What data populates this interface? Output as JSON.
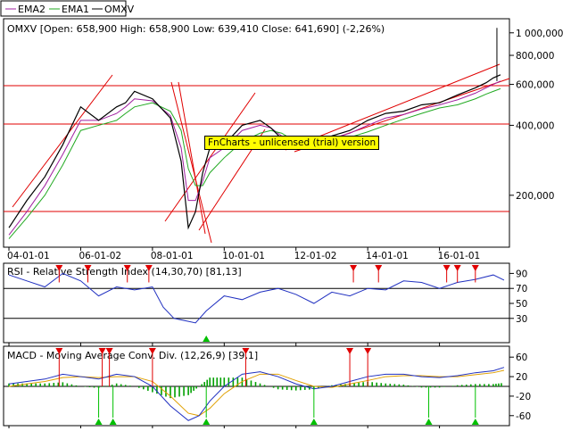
{
  "legend": [
    {
      "name": "EMA2",
      "color": "#a020a0"
    },
    {
      "name": "EMA1",
      "color": "#22aa22"
    },
    {
      "name": "OMXV",
      "color": "#000000"
    }
  ],
  "price_title": "OMXV [Open: 658,900  High: 658,900  Low: 639,410  Close: 641,690] (-2,26%)",
  "rsi_title": "RSI - Relative Strength Index (14,30,70) [81,13]",
  "macd_title": "MACD - Moving Average Conv. Div. (12,26,9) [39,1]",
  "watermark": "FnCharts - unlicensed (trial) version",
  "x_ticks": [
    "04-01-01",
    "06-01-02",
    "08-01-01",
    "10-01-01",
    "12-01-02",
    "14-01-01",
    "16-01-01"
  ],
  "price_ticks": [
    "1 000,000",
    "800,000",
    "600,000",
    "400,000",
    "200,000"
  ],
  "rsi_ticks": [
    "90",
    "70",
    "50",
    "30"
  ],
  "macd_ticks": [
    "60",
    "20",
    "-20",
    "-60"
  ],
  "colors": {
    "price": "#000000",
    "ema1": "#22aa22",
    "ema2": "#a020a0",
    "trend": "#e00000",
    "rsi": "#2030c0",
    "macd": "#2030c0",
    "signal": "#e0a000",
    "hist": "#00a000",
    "sell": "#e00000",
    "buy": "#00c000"
  },
  "chart_data": [
    {
      "type": "line",
      "title": "OMXV [Open: 658,900  High: 658,900  Low: 639,410  Close: 641,690] (-2,26%)",
      "x": [
        2004.0,
        2004.5,
        2005.0,
        2005.5,
        2006.0,
        2006.5,
        2007.0,
        2007.25,
        2007.5,
        2008.0,
        2008.5,
        2008.8,
        2009.0,
        2009.2,
        2009.4,
        2009.6,
        2010.0,
        2010.5,
        2011.0,
        2011.3,
        2011.6,
        2012.0,
        2012.5,
        2013.0,
        2013.5,
        2014.0,
        2014.5,
        2015.0,
        2015.5,
        2016.0,
        2016.5,
        2017.0,
        2017.3,
        2017.5,
        2017.7
      ],
      "x_tick_labels": [
        "04-01-01",
        "06-01-02",
        "08-01-01",
        "10-01-01",
        "12-01-02",
        "14-01-01",
        "16-01-01"
      ],
      "x_range": [
        2003.9,
        2017.9
      ],
      "y_scale": "log",
      "y_ticks": [
        1000000,
        800000,
        600000,
        400000,
        200000
      ],
      "series": [
        {
          "name": "OMXV",
          "values": [
            145000,
            190000,
            240000,
            330000,
            480000,
            420000,
            480000,
            500000,
            560000,
            520000,
            430000,
            280000,
            145000,
            170000,
            250000,
            320000,
            330000,
            400000,
            420000,
            390000,
            350000,
            320000,
            345000,
            360000,
            380000,
            420000,
            450000,
            460000,
            490000,
            500000,
            540000,
            580000,
            610000,
            640000,
            660000
          ]
        },
        {
          "name": "EMA1",
          "values": [
            130000,
            160000,
            200000,
            270000,
            380000,
            400000,
            420000,
            450000,
            480000,
            500000,
            460000,
            380000,
            260000,
            220000,
            220000,
            250000,
            290000,
            340000,
            370000,
            380000,
            370000,
            340000,
            335000,
            340000,
            355000,
            375000,
            400000,
            425000,
            450000,
            475000,
            490000,
            520000,
            545000,
            560000,
            575000
          ]
        },
        {
          "name": "EMA2",
          "values": [
            135000,
            170000,
            220000,
            300000,
            420000,
            420000,
            450000,
            480000,
            520000,
            510000,
            440000,
            320000,
            190000,
            190000,
            230000,
            290000,
            320000,
            380000,
            400000,
            390000,
            360000,
            330000,
            340000,
            350000,
            370000,
            400000,
            430000,
            445000,
            470000,
            490000,
            515000,
            550000,
            580000,
            600000,
            620000
          ]
        }
      ]
    },
    {
      "type": "line",
      "title": "RSI - Relative Strength Index (14,30,70) [81,13]",
      "y_ticks": [
        90,
        70,
        50,
        30
      ],
      "levels": [
        30,
        70
      ],
      "x": [
        2004.0,
        2004.5,
        2005.0,
        2005.5,
        2006.0,
        2006.5,
        2007.0,
        2007.5,
        2008.0,
        2008.3,
        2008.6,
        2009.0,
        2009.2,
        2009.5,
        2010.0,
        2010.5,
        2011.0,
        2011.5,
        2012.0,
        2012.5,
        2013.0,
        2013.5,
        2014.0,
        2014.5,
        2015.0,
        2015.5,
        2016.0,
        2016.5,
        2017.0,
        2017.5,
        2017.8
      ],
      "series": [
        {
          "name": "RSI",
          "values": [
            88,
            80,
            72,
            90,
            80,
            60,
            72,
            68,
            72,
            45,
            30,
            26,
            24,
            40,
            60,
            55,
            65,
            70,
            62,
            50,
            65,
            60,
            70,
            68,
            80,
            78,
            70,
            78,
            82,
            88,
            81
          ]
        }
      ],
      "sell_signals_x": [
        2005.4,
        2006.2,
        2007.3,
        2007.9,
        2013.6,
        2014.3,
        2016.2,
        2016.5,
        2017.0
      ],
      "buy_signals_x": [
        2009.5
      ]
    },
    {
      "type": "line",
      "title": "MACD - Moving Average Conv. Div. (12,26,9) [39,1]",
      "y_ticks": [
        60,
        20,
        -20,
        -60
      ],
      "x": [
        2004.0,
        2004.5,
        2005.0,
        2005.5,
        2006.0,
        2006.5,
        2007.0,
        2007.5,
        2008.0,
        2008.5,
        2009.0,
        2009.3,
        2009.6,
        2010.0,
        2010.5,
        2011.0,
        2011.5,
        2012.0,
        2012.5,
        2013.0,
        2013.5,
        2014.0,
        2014.5,
        2015.0,
        2015.5,
        2016.0,
        2016.5,
        2017.0,
        2017.5,
        2017.8
      ],
      "series": [
        {
          "name": "MACD",
          "values": [
            5,
            10,
            15,
            25,
            20,
            15,
            25,
            20,
            0,
            -40,
            -70,
            -60,
            -30,
            0,
            25,
            30,
            20,
            5,
            -5,
            0,
            10,
            20,
            25,
            25,
            20,
            18,
            22,
            28,
            32,
            39
          ]
        },
        {
          "name": "Signal",
          "values": [
            0,
            5,
            10,
            18,
            20,
            18,
            20,
            20,
            10,
            -20,
            -55,
            -60,
            -45,
            -15,
            10,
            25,
            25,
            12,
            0,
            -2,
            5,
            12,
            20,
            22,
            22,
            20,
            20,
            24,
            28,
            33
          ]
        }
      ],
      "sell_signals_x": [
        2005.4,
        2006.6,
        2006.8,
        2008.0,
        2010.6,
        2013.5,
        2014.0
      ],
      "buy_signals_x": [
        2006.5,
        2006.9,
        2009.5,
        2012.5,
        2015.7,
        2017.0
      ]
    }
  ]
}
